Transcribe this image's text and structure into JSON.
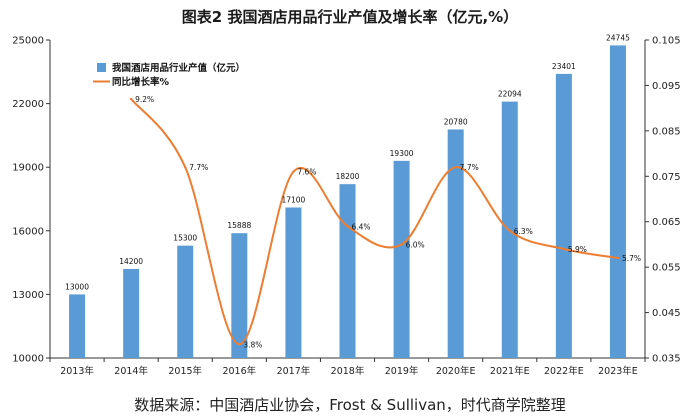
{
  "title": "图表2  我国酒店用品行业产值及增长率（亿元,%）",
  "source": "数据来源：中国酒店业协会，Frost & Sullivan，时代商学院整理",
  "chart_data": {
    "type": "bar",
    "title": "图表2  我国酒店用品行业产值及增长率（亿元,%）",
    "categories": [
      "2013年",
      "2014年",
      "2015年",
      "2016年",
      "2017年",
      "2018年",
      "2019年",
      "2020年E",
      "2021年E",
      "2022年E",
      "2023年E"
    ],
    "series": [
      {
        "name": "我国酒店用品行业产值（亿元）",
        "type": "bar",
        "axis": "left",
        "color": "#5b9bd5",
        "values": [
          13000,
          14200,
          15300,
          15888,
          17100,
          18200,
          19300,
          20780,
          22094,
          23401,
          24745
        ],
        "labels": [
          "13000",
          "14200",
          "15300",
          "15888",
          "17100",
          "18200",
          "19300",
          "20780",
          "22094",
          "23401",
          "24745"
        ]
      },
      {
        "name": "同比增长率%",
        "type": "line",
        "axis": "right",
        "color": "#ed7d31",
        "values": [
          null,
          0.092,
          0.077,
          0.038,
          0.076,
          0.064,
          0.06,
          0.077,
          0.063,
          0.059,
          0.057
        ],
        "labels": [
          "",
          "9.2%",
          "7.7%",
          "3.8%",
          "7.6%",
          "6.4%",
          "6.0%",
          "7.7%",
          "6.3%",
          "5.9%",
          "5.7%"
        ]
      }
    ],
    "y_left": {
      "min": 10000,
      "max": 25000,
      "ticks": [
        10000,
        13000,
        16000,
        19000,
        22000,
        25000
      ],
      "tick_labels": [
        "10000",
        "13000",
        "16000",
        "19000",
        "22000",
        "25000"
      ]
    },
    "y_right": {
      "min": 0.035,
      "max": 0.105,
      "ticks": [
        0.035,
        0.045,
        0.055,
        0.065,
        0.075,
        0.085,
        0.095,
        0.105
      ],
      "tick_labels": [
        "0.035",
        "0.045",
        "0.055",
        "0.065",
        "0.075",
        "0.085",
        "0.095",
        "0.105"
      ]
    },
    "grid": false,
    "legend_position": "top-left"
  }
}
